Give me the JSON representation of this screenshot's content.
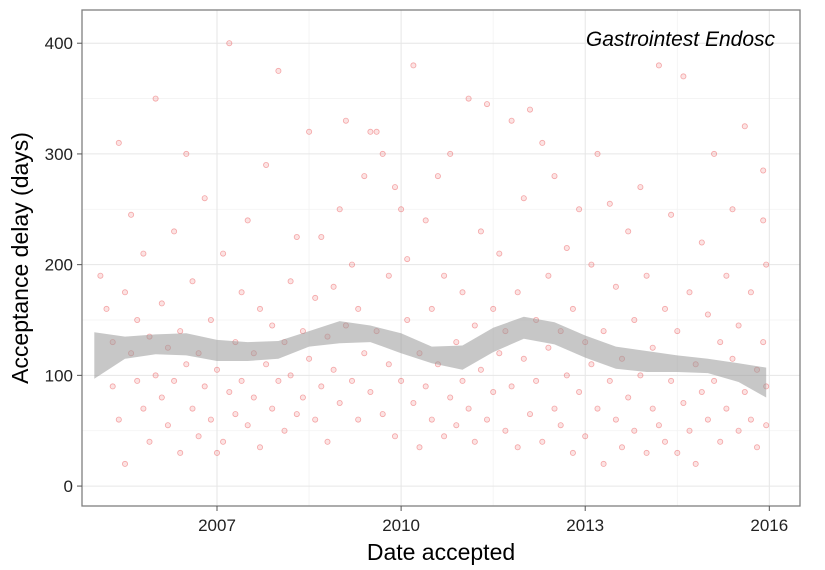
{
  "chart_data": {
    "type": "scatter",
    "title": "",
    "annotation": "Gastrointest Endosc",
    "xlabel": "Date accepted",
    "ylabel": "Acceptance delay (days)",
    "x_unit": "year",
    "xlim": [
      2004.8,
      2016.5
    ],
    "ylim": [
      -18,
      430
    ],
    "x_ticks": [
      2007,
      2010,
      2013,
      2016
    ],
    "x_tick_labels": [
      "2007",
      "2010",
      "2013",
      "2016"
    ],
    "y_ticks": [
      0,
      100,
      200,
      300,
      400
    ],
    "y_tick_labels": [
      "0",
      "100",
      "200",
      "300",
      "400"
    ],
    "grid": true,
    "point_color": "#e31a1c",
    "point_alpha": 0.12,
    "smooth_color": "#999999",
    "smooth": {
      "x": [
        2005.0,
        2005.5,
        2006.0,
        2006.5,
        2007.0,
        2007.5,
        2008.0,
        2008.5,
        2009.0,
        2009.5,
        2010.0,
        2010.5,
        2011.0,
        2011.5,
        2012.0,
        2012.5,
        2013.0,
        2013.5,
        2014.0,
        2014.5,
        2015.0,
        2015.5,
        2015.95
      ],
      "upper": [
        139,
        135,
        137,
        138,
        132,
        130,
        131,
        140,
        149,
        145,
        138,
        126,
        127,
        143,
        153,
        148,
        136,
        126,
        122,
        118,
        115,
        111,
        107
      ],
      "lower": [
        97,
        115,
        119,
        118,
        113,
        113,
        115,
        126,
        129,
        130,
        120,
        111,
        105,
        121,
        133,
        128,
        116,
        106,
        103,
        103,
        102,
        94,
        80
      ]
    },
    "series": [
      {
        "points": [
          [
            2005.1,
            190
          ],
          [
            2005.2,
            160
          ],
          [
            2005.3,
            130
          ],
          [
            2005.3,
            90
          ],
          [
            2005.4,
            60
          ],
          [
            2005.4,
            310
          ],
          [
            2005.5,
            175
          ],
          [
            2005.5,
            20
          ],
          [
            2005.6,
            120
          ],
          [
            2005.6,
            245
          ],
          [
            2005.7,
            95
          ],
          [
            2005.7,
            150
          ],
          [
            2005.8,
            70
          ],
          [
            2005.8,
            210
          ],
          [
            2005.9,
            135
          ],
          [
            2005.9,
            40
          ],
          [
            2006.0,
            100
          ],
          [
            2006.0,
            350
          ],
          [
            2006.1,
            80
          ],
          [
            2006.1,
            165
          ],
          [
            2006.2,
            125
          ],
          [
            2006.2,
            55
          ],
          [
            2006.3,
            230
          ],
          [
            2006.3,
            95
          ],
          [
            2006.4,
            140
          ],
          [
            2006.4,
            30
          ],
          [
            2006.5,
            110
          ],
          [
            2006.5,
            300
          ],
          [
            2006.6,
            70
          ],
          [
            2006.6,
            185
          ],
          [
            2006.7,
            120
          ],
          [
            2006.7,
            45
          ],
          [
            2006.8,
            90
          ],
          [
            2006.8,
            260
          ],
          [
            2006.9,
            60
          ],
          [
            2006.9,
            150
          ],
          [
            2007.0,
            30
          ],
          [
            2007.0,
            105
          ],
          [
            2007.1,
            40
          ],
          [
            2007.1,
            210
          ],
          [
            2007.2,
            85
          ],
          [
            2007.2,
            400
          ],
          [
            2007.3,
            130
          ],
          [
            2007.3,
            65
          ],
          [
            2007.4,
            175
          ],
          [
            2007.4,
            95
          ],
          [
            2007.5,
            55
          ],
          [
            2007.5,
            240
          ],
          [
            2007.6,
            120
          ],
          [
            2007.6,
            80
          ],
          [
            2007.7,
            160
          ],
          [
            2007.7,
            35
          ],
          [
            2007.8,
            110
          ],
          [
            2007.8,
            290
          ],
          [
            2007.9,
            70
          ],
          [
            2007.9,
            145
          ],
          [
            2008.0,
            95
          ],
          [
            2008.0,
            375
          ],
          [
            2008.1,
            130
          ],
          [
            2008.1,
            50
          ],
          [
            2008.2,
            185
          ],
          [
            2008.2,
            100
          ],
          [
            2008.3,
            65
          ],
          [
            2008.3,
            225
          ],
          [
            2008.4,
            140
          ],
          [
            2008.4,
            80
          ],
          [
            2008.5,
            115
          ],
          [
            2008.5,
            320
          ],
          [
            2008.6,
            60
          ],
          [
            2008.6,
            170
          ],
          [
            2008.7,
            225
          ],
          [
            2008.7,
            90
          ],
          [
            2008.8,
            135
          ],
          [
            2008.8,
            40
          ],
          [
            2008.9,
            180
          ],
          [
            2008.9,
            105
          ],
          [
            2009.0,
            250
          ],
          [
            2009.0,
            75
          ],
          [
            2009.1,
            145
          ],
          [
            2009.1,
            330
          ],
          [
            2009.2,
            95
          ],
          [
            2009.2,
            200
          ],
          [
            2009.3,
            60
          ],
          [
            2009.3,
            160
          ],
          [
            2009.4,
            120
          ],
          [
            2009.4,
            280
          ],
          [
            2009.5,
            320
          ],
          [
            2009.5,
            85
          ],
          [
            2009.6,
            320
          ],
          [
            2009.6,
            140
          ],
          [
            2009.7,
            300
          ],
          [
            2009.7,
            65
          ],
          [
            2009.8,
            190
          ],
          [
            2009.8,
            110
          ],
          [
            2009.9,
            270
          ],
          [
            2009.9,
            45
          ],
          [
            2010.0,
            250
          ],
          [
            2010.0,
            95
          ],
          [
            2010.1,
            205
          ],
          [
            2010.1,
            150
          ],
          [
            2010.2,
            75
          ],
          [
            2010.2,
            380
          ],
          [
            2010.3,
            120
          ],
          [
            2010.3,
            35
          ],
          [
            2010.4,
            240
          ],
          [
            2010.4,
            90
          ],
          [
            2010.5,
            160
          ],
          [
            2010.5,
            60
          ],
          [
            2010.6,
            280
          ],
          [
            2010.6,
            110
          ],
          [
            2010.7,
            45
          ],
          [
            2010.7,
            190
          ],
          [
            2010.8,
            80
          ],
          [
            2010.8,
            300
          ],
          [
            2010.9,
            130
          ],
          [
            2010.9,
            55
          ],
          [
            2011.0,
            175
          ],
          [
            2011.0,
            95
          ],
          [
            2011.1,
            350
          ],
          [
            2011.1,
            70
          ],
          [
            2011.2,
            145
          ],
          [
            2011.2,
            40
          ],
          [
            2011.3,
            230
          ],
          [
            2011.3,
            105
          ],
          [
            2011.4,
            345
          ],
          [
            2011.4,
            60
          ],
          [
            2011.5,
            160
          ],
          [
            2011.5,
            85
          ],
          [
            2011.6,
            120
          ],
          [
            2011.6,
            210
          ],
          [
            2011.7,
            50
          ],
          [
            2011.7,
            140
          ],
          [
            2011.8,
            330
          ],
          [
            2011.8,
            90
          ],
          [
            2011.9,
            175
          ],
          [
            2011.9,
            35
          ],
          [
            2012.0,
            260
          ],
          [
            2012.0,
            115
          ],
          [
            2012.1,
            65
          ],
          [
            2012.1,
            340
          ],
          [
            2012.2,
            150
          ],
          [
            2012.2,
            95
          ],
          [
            2012.3,
            310
          ],
          [
            2012.3,
            40
          ],
          [
            2012.4,
            190
          ],
          [
            2012.4,
            125
          ],
          [
            2012.5,
            70
          ],
          [
            2012.5,
            280
          ],
          [
            2012.6,
            140
          ],
          [
            2012.6,
            55
          ],
          [
            2012.7,
            215
          ],
          [
            2012.7,
            100
          ],
          [
            2012.8,
            160
          ],
          [
            2012.8,
            30
          ],
          [
            2012.9,
            250
          ],
          [
            2012.9,
            85
          ],
          [
            2013.0,
            130
          ],
          [
            2013.0,
            45
          ],
          [
            2013.1,
            200
          ],
          [
            2013.1,
            110
          ],
          [
            2013.2,
            70
          ],
          [
            2013.2,
            300
          ],
          [
            2013.3,
            140
          ],
          [
            2013.3,
            20
          ],
          [
            2013.4,
            95
          ],
          [
            2013.4,
            255
          ],
          [
            2013.5,
            60
          ],
          [
            2013.5,
            180
          ],
          [
            2013.6,
            115
          ],
          [
            2013.6,
            35
          ],
          [
            2013.7,
            230
          ],
          [
            2013.7,
            80
          ],
          [
            2013.8,
            150
          ],
          [
            2013.8,
            50
          ],
          [
            2013.9,
            270
          ],
          [
            2013.9,
            100
          ],
          [
            2014.0,
            30
          ],
          [
            2014.0,
            190
          ],
          [
            2014.1,
            70
          ],
          [
            2014.1,
            125
          ],
          [
            2014.2,
            380
          ],
          [
            2014.2,
            55
          ],
          [
            2014.3,
            160
          ],
          [
            2014.3,
            40
          ],
          [
            2014.4,
            95
          ],
          [
            2014.4,
            245
          ],
          [
            2014.5,
            30
          ],
          [
            2014.5,
            140
          ],
          [
            2014.6,
            75
          ],
          [
            2014.6,
            370
          ],
          [
            2014.7,
            50
          ],
          [
            2014.7,
            175
          ],
          [
            2014.8,
            110
          ],
          [
            2014.8,
            20
          ],
          [
            2014.9,
            220
          ],
          [
            2014.9,
            85
          ],
          [
            2015.0,
            60
          ],
          [
            2015.0,
            155
          ],
          [
            2015.1,
            95
          ],
          [
            2015.1,
            300
          ],
          [
            2015.2,
            40
          ],
          [
            2015.2,
            130
          ],
          [
            2015.3,
            190
          ],
          [
            2015.3,
            70
          ],
          [
            2015.4,
            115
          ],
          [
            2015.4,
            250
          ],
          [
            2015.5,
            50
          ],
          [
            2015.5,
            145
          ],
          [
            2015.6,
            85
          ],
          [
            2015.6,
            325
          ],
          [
            2015.7,
            60
          ],
          [
            2015.7,
            175
          ],
          [
            2015.8,
            105
          ],
          [
            2015.8,
            35
          ],
          [
            2015.9,
            285
          ],
          [
            2015.9,
            130
          ],
          [
            2015.95,
            55
          ],
          [
            2015.95,
            200
          ],
          [
            2015.95,
            90
          ],
          [
            2015.9,
            240
          ]
        ]
      }
    ]
  }
}
